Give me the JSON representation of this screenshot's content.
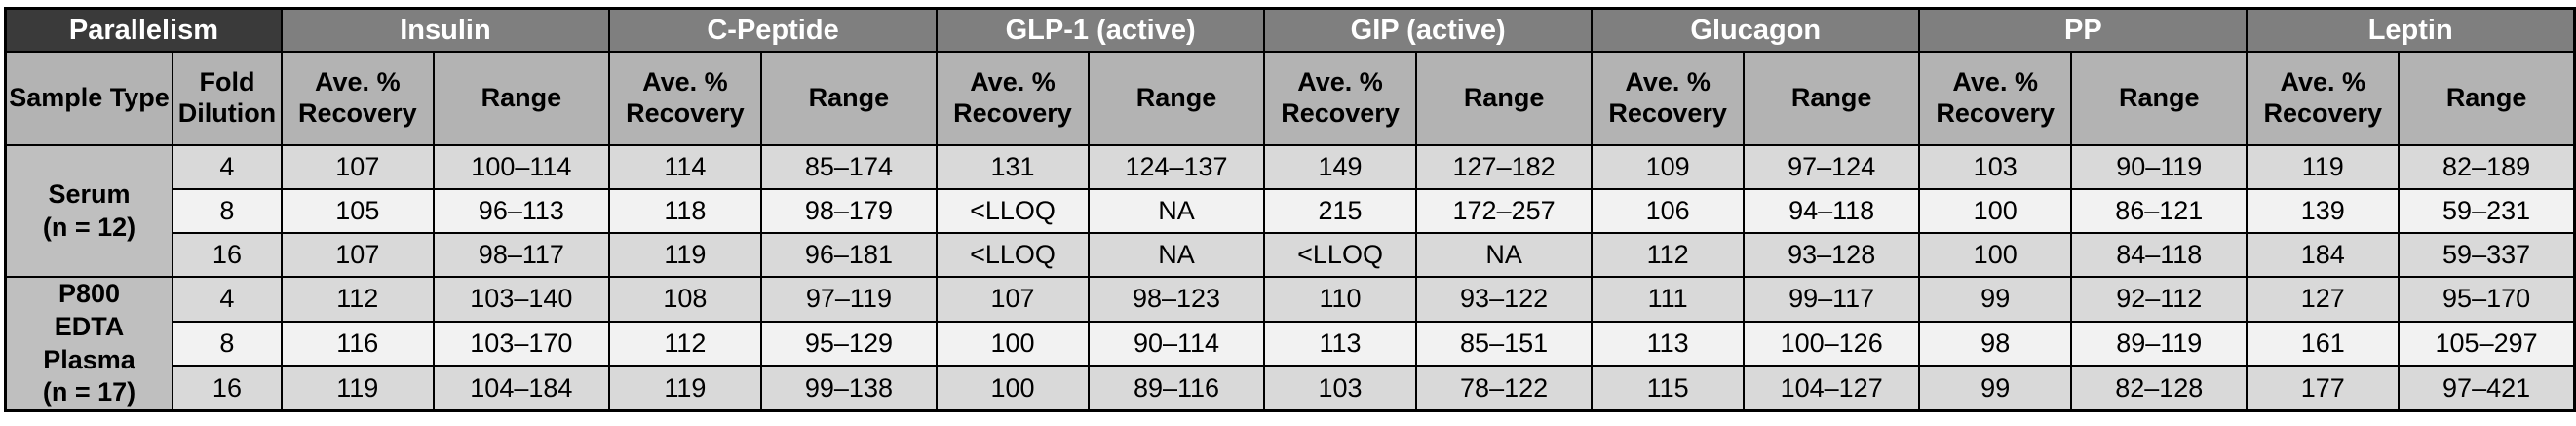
{
  "colors": {
    "header_dark": "#3a3a3a",
    "header_gray": "#7f7f7f",
    "subheader_gray": "#b3b3b3",
    "label_gray": "#bfbfbf",
    "row_light": "#d9d9d9",
    "row_white": "#f2f2f2",
    "border_color": "#000000"
  },
  "table": {
    "corner_header": "Parallelism",
    "row_headers": [
      "Sample Type",
      "Fold Dilution"
    ],
    "analytes": [
      "Insulin",
      "C-Peptide",
      "GLP-1 (active)",
      "GIP (active)",
      "Glucagon",
      "PP",
      "Leptin"
    ],
    "sub_headers": [
      "Ave. % Recovery",
      "Range"
    ],
    "groups": [
      {
        "sample_type_lines": [
          "Serum",
          "(n = 12)"
        ],
        "rows": [
          {
            "fold_dilution": "4",
            "values": [
              "107",
              "100–114",
              "114",
              "85–174",
              "131",
              "124–137",
              "149",
              "127–182",
              "109",
              "97–124",
              "103",
              "90–119",
              "119",
              "82–189"
            ]
          },
          {
            "fold_dilution": "8",
            "values": [
              "105",
              "96–113",
              "118",
              "98–179",
              "<LLOQ",
              "NA",
              "215",
              "172–257",
              "106",
              "94–118",
              "100",
              "86–121",
              "139",
              "59–231"
            ]
          },
          {
            "fold_dilution": "16",
            "values": [
              "107",
              "98–117",
              "119",
              "96–181",
              "<LLOQ",
              "NA",
              "<LLOQ",
              "NA",
              "112",
              "93–128",
              "100",
              "84–118",
              "184",
              "59–337"
            ]
          }
        ]
      },
      {
        "sample_type_lines": [
          "P800",
          "EDTA Plasma",
          "(n = 17)"
        ],
        "rows": [
          {
            "fold_dilution": "4",
            "values": [
              "112",
              "103–140",
              "108",
              "97–119",
              "107",
              "98–123",
              "110",
              "93–122",
              "111",
              "99–117",
              "99",
              "92–112",
              "127",
              "95–170"
            ]
          },
          {
            "fold_dilution": "8",
            "values": [
              "116",
              "103–170",
              "112",
              "95–129",
              "100",
              "90–114",
              "113",
              "85–151",
              "113",
              "100–126",
              "98",
              "89–119",
              "161",
              "105–297"
            ]
          },
          {
            "fold_dilution": "16",
            "values": [
              "119",
              "104–184",
              "119",
              "99–138",
              "100",
              "89–116",
              "103",
              "78–122",
              "115",
              "104–127",
              "99",
              "82–128",
              "177",
              "97–421"
            ]
          }
        ]
      }
    ]
  }
}
